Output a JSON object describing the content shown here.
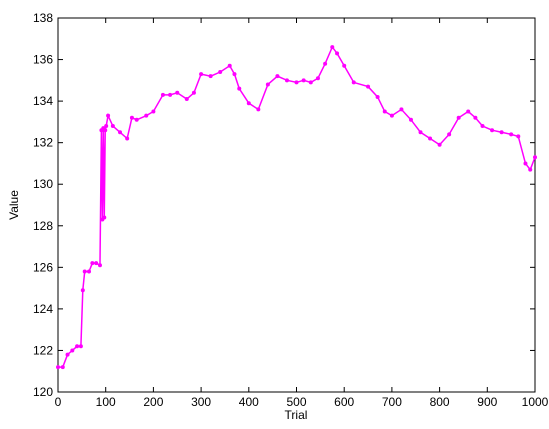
{
  "chart_data": {
    "type": "line",
    "xlabel": "Trial",
    "ylabel": "Value",
    "x": [
      0,
      10,
      20,
      30,
      40,
      48,
      52,
      56,
      65,
      72,
      80,
      88,
      91,
      93,
      95,
      97,
      99,
      101,
      105,
      115,
      130,
      145,
      155,
      165,
      185,
      200,
      220,
      235,
      250,
      270,
      285,
      300,
      320,
      340,
      360,
      370,
      380,
      400,
      420,
      440,
      460,
      480,
      500,
      515,
      530,
      545,
      560,
      575,
      585,
      600,
      620,
      650,
      670,
      685,
      700,
      720,
      740,
      760,
      780,
      800,
      820,
      840,
      860,
      875,
      890,
      910,
      930,
      950,
      965,
      980,
      990,
      1000
    ],
    "series": [
      {
        "name": "Value",
        "color": "#ff00ff",
        "values": [
          121.2,
          121.2,
          121.8,
          122.0,
          122.2,
          122.2,
          124.9,
          125.8,
          125.8,
          126.2,
          126.2,
          126.1,
          132.6,
          128.3,
          132.7,
          128.4,
          132.6,
          132.8,
          133.3,
          132.8,
          132.5,
          132.2,
          133.2,
          133.1,
          133.3,
          133.5,
          134.3,
          134.3,
          134.4,
          134.1,
          134.4,
          135.3,
          135.2,
          135.4,
          135.7,
          135.3,
          134.6,
          133.9,
          133.6,
          134.8,
          135.2,
          135.0,
          134.9,
          135.0,
          134.9,
          135.1,
          135.8,
          136.6,
          136.3,
          135.7,
          134.9,
          134.7,
          134.2,
          133.5,
          133.3,
          133.6,
          133.1,
          132.5,
          132.2,
          131.9,
          132.4,
          133.2,
          133.5,
          133.2,
          132.8,
          132.6,
          132.5,
          132.4,
          132.3,
          131.0,
          130.7,
          131.3
        ]
      }
    ],
    "xlim": [
      0,
      1000
    ],
    "xticks": [
      0,
      100,
      200,
      300,
      400,
      500,
      600,
      700,
      800,
      900,
      1000
    ],
    "ylim": [
      120,
      138
    ],
    "yticks": [
      120,
      122,
      124,
      126,
      128,
      130,
      132,
      134,
      136,
      138
    ]
  }
}
